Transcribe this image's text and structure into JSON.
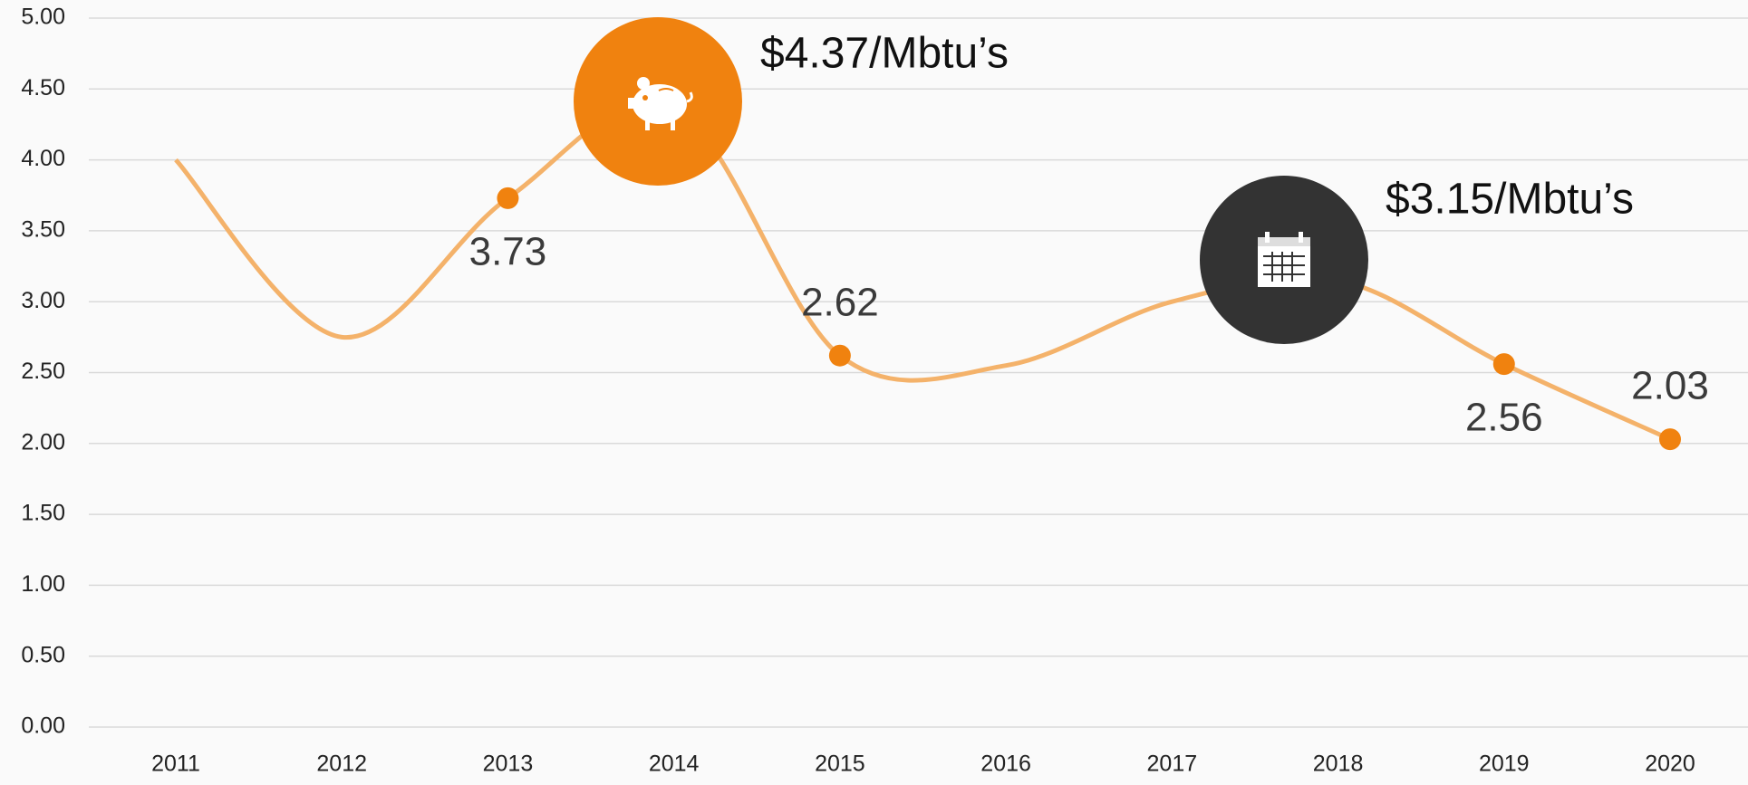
{
  "chart_data": {
    "type": "line",
    "categories": [
      "2011",
      "2012",
      "2013",
      "2014",
      "2015",
      "2016",
      "2017",
      "2018",
      "2019",
      "2020"
    ],
    "values": [
      4.0,
      2.75,
      3.73,
      4.37,
      2.62,
      2.55,
      3.0,
      3.15,
      2.56,
      2.03
    ],
    "color": "#f4b26a",
    "marker_color": "#f0820f",
    "labeled_points": [
      2,
      4,
      8,
      9
    ],
    "label_positions": [
      "below",
      "above",
      "below",
      "above"
    ],
    "ylim": [
      0,
      5
    ],
    "yticks": [
      {
        "value": 0,
        "label": "0.00"
      },
      {
        "value": 0.5,
        "label": "0.50"
      },
      {
        "value": 1,
        "label": "1.00"
      },
      {
        "value": 1.5,
        "label": "1.50"
      },
      {
        "value": 2,
        "label": "2.00"
      },
      {
        "value": 2.5,
        "label": "2.50"
      },
      {
        "value": 3,
        "label": "3.00"
      },
      {
        "value": 3.5,
        "label": "3.50"
      },
      {
        "value": 4,
        "label": "4.00"
      },
      {
        "value": 4.5,
        "label": "4.50"
      },
      {
        "value": 5,
        "label": "5.00"
      }
    ],
    "grid": true,
    "annotations": [
      "$4.37/Mbtu’s",
      "$3.15/Mbtu’s"
    ]
  }
}
